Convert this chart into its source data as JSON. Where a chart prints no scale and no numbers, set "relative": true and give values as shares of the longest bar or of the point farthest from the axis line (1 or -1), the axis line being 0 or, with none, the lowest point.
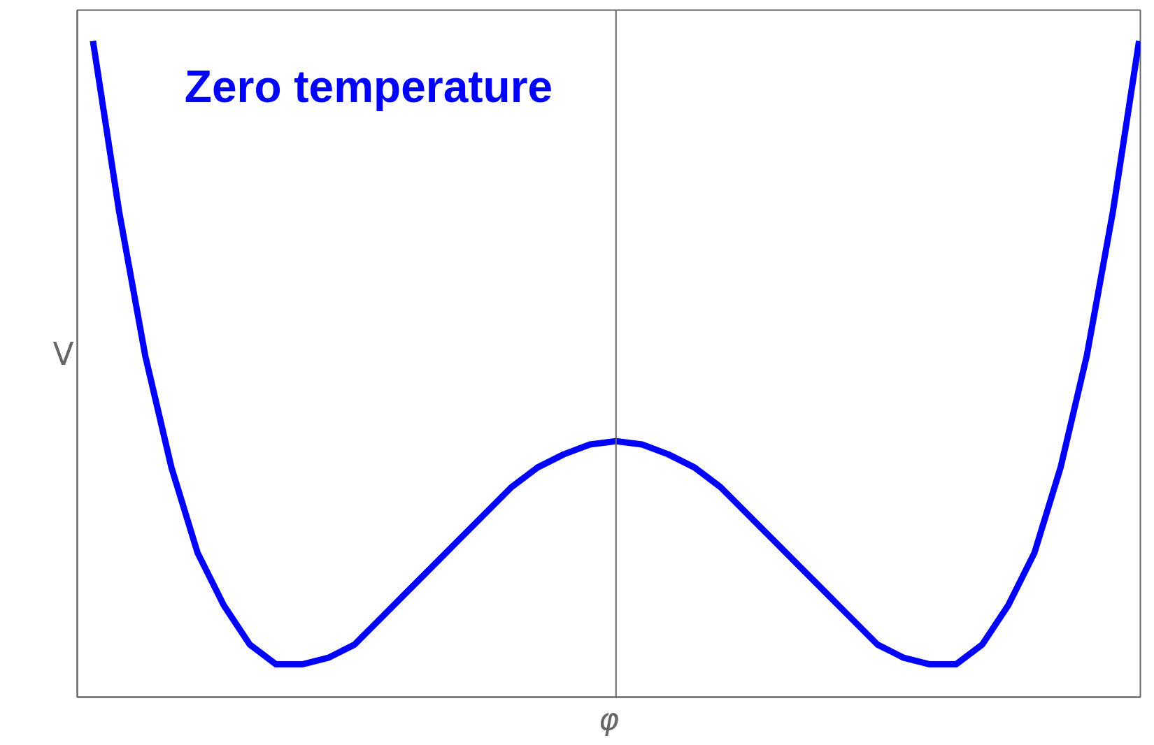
{
  "chart_data": {
    "type": "line",
    "relative": true,
    "xlabel": "φ",
    "ylabel": "V",
    "annotations": [
      "Zero temperature"
    ],
    "categories": [
      null,
      null,
      null,
      null,
      null,
      null,
      null,
      null,
      null,
      null,
      null,
      null,
      null,
      null,
      null,
      null,
      null,
      null,
      null,
      null,
      null,
      null,
      null,
      null,
      null,
      null,
      null,
      null,
      null,
      null,
      null,
      null,
      null,
      null,
      null,
      null,
      null,
      null,
      null,
      null,
      null
    ],
    "series": [
      {
        "color": "#0000ff",
        "values": [
          1.0,
          0.74,
          0.52,
          0.35,
          0.22,
          0.14,
          0.08,
          0.05,
          0.05,
          0.06,
          0.08,
          0.12,
          0.16,
          0.2,
          0.24,
          0.28,
          0.32,
          0.35,
          0.37,
          0.385,
          0.39,
          0.385,
          0.37,
          0.35,
          0.32,
          0.28,
          0.24,
          0.2,
          0.16,
          0.12,
          0.08,
          0.06,
          0.05,
          0.05,
          0.08,
          0.14,
          0.22,
          0.35,
          0.52,
          0.74,
          1.0
        ]
      }
    ]
  }
}
